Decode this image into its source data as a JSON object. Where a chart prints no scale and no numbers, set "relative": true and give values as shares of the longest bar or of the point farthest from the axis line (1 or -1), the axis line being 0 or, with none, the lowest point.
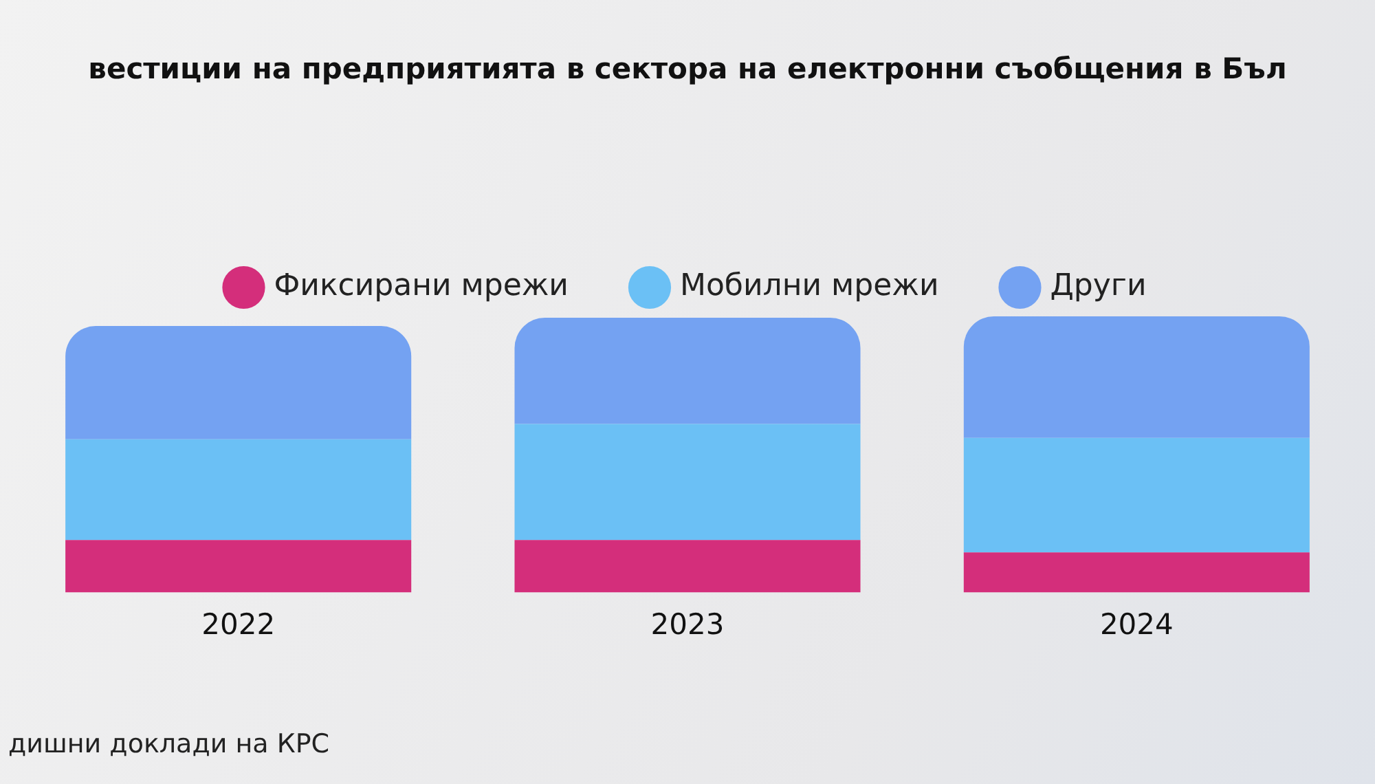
{
  "chart_data": {
    "type": "bar",
    "title": "вестиции на предприятията в сектора на електронни съобщения в Бъл",
    "categories": [
      "2022",
      "2023",
      "2024"
    ],
    "series": [
      {
        "name": "Фиксирани мрежи",
        "color": "#d42e7b",
        "values": [
          0.19,
          0.19,
          0.145
        ]
      },
      {
        "name": "Мобилни мрежи",
        "color": "#6bc0f5",
        "values": [
          0.365,
          0.42,
          0.415
        ]
      },
      {
        "name": "Други",
        "color": "#74a2f2",
        "values": [
          0.41,
          0.385,
          0.44
        ]
      }
    ],
    "stacked": true,
    "relative": true,
    "legend": "top",
    "grid": false,
    "annotations": [
      "дишни доклади на КРС"
    ]
  }
}
